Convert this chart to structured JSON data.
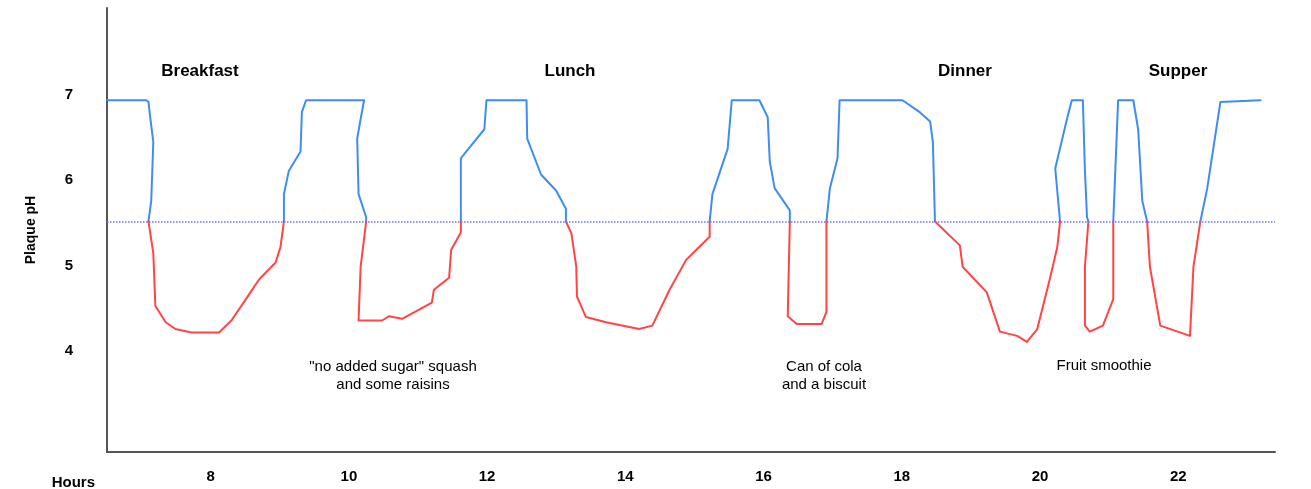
{
  "chart_data": {
    "type": "line",
    "xlabel": "Hours",
    "ylabel": "Plaque pH",
    "xlim": [
      6.5,
      23.4
    ],
    "ylim": [
      2.8,
      8
    ],
    "xticks": [
      8,
      10,
      12,
      14,
      16,
      18,
      20,
      22
    ],
    "yticks": [
      4,
      5,
      6,
      7
    ],
    "grid": false,
    "marker": "none",
    "line_style": "solid",
    "series": [
      {
        "color": "#3d8ef0",
        "x": [
          6.5,
          7.07,
          7.1,
          7.13,
          7.17,
          7.14,
          7.1
        ],
        "values": [
          6.92,
          6.92,
          6.9,
          6.69,
          6.43,
          5.74,
          5.5
        ]
      },
      {
        "color": "#3d8ef0",
        "x": [
          9.06,
          9.06,
          9.13,
          9.3,
          9.32,
          9.38,
          10.22,
          10.17,
          10.12,
          10.14,
          10.25,
          10.25
        ],
        "values": [
          5.5,
          5.82,
          6.09,
          6.32,
          6.78,
          6.92,
          6.92,
          6.7,
          6.47,
          5.82,
          5.55,
          5.5
        ]
      },
      {
        "color": "#3d8ef0",
        "x": [
          11.62,
          11.62,
          11.7,
          11.96,
          11.99,
          12.57,
          12.58,
          12.78,
          13.0,
          13.14,
          13.14
        ],
        "values": [
          5.5,
          6.24,
          6.32,
          6.58,
          6.92,
          6.92,
          6.47,
          6.05,
          5.86,
          5.65,
          5.5
        ]
      },
      {
        "color": "#3d8ef0",
        "x": [
          15.22,
          15.26,
          15.48,
          15.54,
          15.94,
          16.06,
          16.09,
          16.16,
          16.38,
          16.38
        ],
        "values": [
          5.5,
          5.82,
          6.35,
          6.92,
          6.92,
          6.72,
          6.2,
          5.89,
          5.63,
          5.5
        ]
      },
      {
        "color": "#3d8ef0",
        "x": [
          16.91,
          16.96,
          17.07,
          17.1,
          18.01,
          18.26,
          18.41,
          18.45,
          18.48
        ],
        "values": [
          5.5,
          5.89,
          6.24,
          6.92,
          6.92,
          6.78,
          6.67,
          6.43,
          5.5
        ]
      },
      {
        "color": "#3d8ef0",
        "x": [
          20.29,
          20.22,
          20.39,
          20.46,
          20.62,
          20.65,
          20.68,
          20.7
        ],
        "values": [
          5.5,
          6.12,
          6.7,
          6.92,
          6.92,
          6.09,
          5.55,
          5.5
        ]
      },
      {
        "color": "#3d8ef0",
        "x": [
          21.06,
          21.13,
          21.35,
          21.42,
          21.48,
          21.55
        ],
        "values": [
          5.5,
          6.92,
          6.92,
          6.58,
          5.74,
          5.5
        ]
      },
      {
        "color": "#3d8ef0",
        "x": [
          22.32,
          22.42,
          22.61,
          23.19
        ],
        "values": [
          5.5,
          5.89,
          6.9,
          6.92
        ]
      },
      {
        "color": "#ff4545",
        "x": [
          7.1,
          7.17,
          7.2,
          7.35,
          7.49,
          7.72,
          8.12,
          8.3,
          8.51,
          8.7,
          8.94,
          9.01,
          9.06
        ],
        "values": [
          5.5,
          5.13,
          4.51,
          4.32,
          4.24,
          4.2,
          4.2,
          4.34,
          4.59,
          4.82,
          5.02,
          5.2,
          5.5
        ]
      },
      {
        "color": "#ff4545",
        "x": [
          10.25,
          10.17,
          10.14,
          10.48,
          10.58,
          10.77,
          11.2,
          11.23,
          11.45,
          11.48,
          11.62,
          11.62
        ],
        "values": [
          5.5,
          4.97,
          4.34,
          4.34,
          4.39,
          4.36,
          4.55,
          4.7,
          4.84,
          5.17,
          5.37,
          5.5
        ]
      },
      {
        "color": "#ff4545",
        "x": [
          13.14,
          13.22,
          13.29,
          13.3,
          13.43,
          13.72,
          14.2,
          14.39,
          14.64,
          14.88,
          15.22,
          15.22
        ],
        "values": [
          5.5,
          5.36,
          4.97,
          4.62,
          4.38,
          4.32,
          4.24,
          4.28,
          4.7,
          5.05,
          5.32,
          5.5
        ]
      },
      {
        "color": "#ff4545",
        "x": [
          16.38,
          16.35,
          16.48,
          16.84,
          16.91,
          16.91
        ],
        "values": [
          5.5,
          4.39,
          4.3,
          4.3,
          4.44,
          5.5
        ]
      },
      {
        "color": "#ff4545",
        "x": [
          18.48,
          18.84,
          18.88,
          19.23,
          19.42,
          19.67,
          19.81,
          19.96,
          20.14,
          20.25,
          20.29
        ],
        "values": [
          5.5,
          5.22,
          4.97,
          4.67,
          4.21,
          4.16,
          4.09,
          4.24,
          4.82,
          5.2,
          5.5
        ]
      },
      {
        "color": "#ff4545",
        "x": [
          20.7,
          20.65,
          20.65,
          20.72,
          20.91,
          21.06,
          21.06
        ],
        "values": [
          5.5,
          4.97,
          4.28,
          4.21,
          4.28,
          4.59,
          5.5
        ]
      },
      {
        "color": "#ff4545",
        "x": [
          21.55,
          21.59,
          21.74,
          22.17,
          22.22,
          22.32
        ],
        "values": [
          5.5,
          4.97,
          4.28,
          4.16,
          4.97,
          5.5
        ]
      }
    ],
    "ref_lines": [
      {
        "axis": "y",
        "value": 5.5,
        "color": "#7070ff",
        "line_style": "dotted"
      }
    ],
    "annotations": [
      "Breakfast",
      "Lunch",
      "Dinner",
      "Supper",
      "\"no added sugar\" squash\nand some raisins",
      "Can of cola\nand a biscuit",
      "Fruit smoothie"
    ]
  }
}
